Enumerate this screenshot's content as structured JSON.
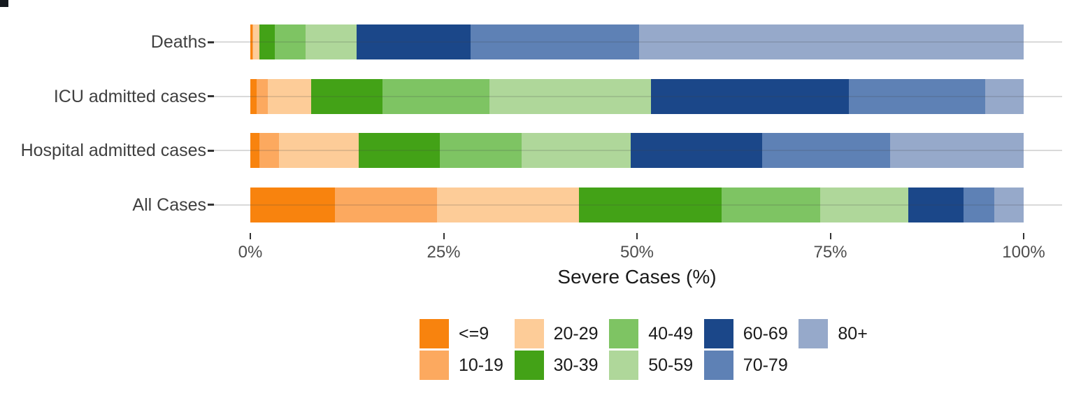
{
  "chart_data": {
    "type": "bar",
    "orientation": "horizontal",
    "stacked": true,
    "stack_unit": "percent",
    "title": "",
    "xlabel": "Severe Cases (%)",
    "xlim": [
      0,
      100
    ],
    "x_ticks": [
      {
        "label": "0%",
        "value": 0
      },
      {
        "label": "25%",
        "value": 25
      },
      {
        "label": "50%",
        "value": 50
      },
      {
        "label": "75%",
        "value": 75
      },
      {
        "label": "100%",
        "value": 100
      }
    ],
    "grid": "horizontal light-gray category gridlines, no axis lines",
    "legend_position": "bottom, 2 rows filled column-wise",
    "age_groups": [
      "<=9",
      "10-19",
      "20-29",
      "30-39",
      "40-49",
      "50-59",
      "60-69",
      "70-79",
      "80+"
    ],
    "colors": {
      "<=9": "#F8830E",
      "10-19": "#FCA95F",
      "20-29": "#FDCC98",
      "30-39": "#43A217",
      "40-49": "#7EC463",
      "50-59": "#AFD79A",
      "60-69": "#1B4789",
      "70-79": "#5E81B5",
      "80+": "#96A9CA"
    },
    "rows": [
      {
        "category": "Deaths",
        "values": [
          0.3,
          0.1,
          0.8,
          2.0,
          3.9,
          6.6,
          14.8,
          21.8,
          49.7
        ]
      },
      {
        "category": "ICU admitted cases",
        "values": [
          0.8,
          1.5,
          5.6,
          9.2,
          13.8,
          20.9,
          25.6,
          17.6,
          5.0
        ]
      },
      {
        "category": "Hospital admitted cases",
        "values": [
          1.2,
          2.5,
          10.3,
          10.5,
          10.6,
          14.1,
          17.0,
          16.5,
          17.3
        ]
      },
      {
        "category": "All Cases",
        "values": [
          10.9,
          13.2,
          18.4,
          18.4,
          12.8,
          11.4,
          7.1,
          4.0,
          3.8
        ]
      }
    ]
  }
}
